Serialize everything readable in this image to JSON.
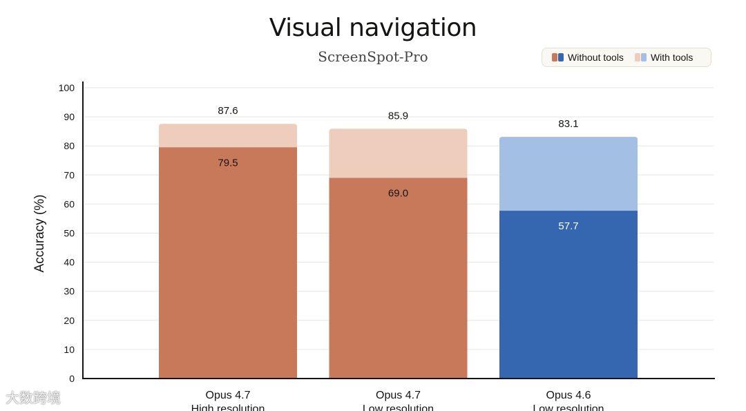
{
  "chart_data": {
    "type": "bar",
    "title": "Visual navigation",
    "subtitle": "ScreenSpot-Pro",
    "ylabel": "Accuracy (%)",
    "ylim": [
      0,
      100
    ],
    "yticks": [
      0,
      10,
      20,
      30,
      40,
      50,
      60,
      70,
      80,
      90,
      100
    ],
    "grid": true,
    "legend_position": "top-right",
    "categories": [
      [
        "Opus 4.7",
        "High resolution"
      ],
      [
        "Opus 4.7",
        "Low resolution"
      ],
      [
        "Opus 4.6",
        "Low resolution"
      ]
    ],
    "series": [
      {
        "name": "Without tools",
        "values": [
          79.5,
          69.0,
          57.7
        ],
        "labels": [
          "79.5",
          "69.0",
          "57.7"
        ]
      },
      {
        "name": "With tools",
        "values": [
          87.6,
          85.9,
          83.1
        ],
        "labels": [
          "87.6",
          "85.9",
          "83.1"
        ]
      }
    ],
    "colors": {
      "without_tools": [
        "#c8795a",
        "#c8795a",
        "#3567b0"
      ],
      "with_tools": [
        "#efcdbd",
        "#efcdbd",
        "#a3bfe4"
      ],
      "legend_without": [
        "#c8795a",
        "#3567b0"
      ],
      "legend_with": [
        "#efcdbd",
        "#a3bfe4"
      ],
      "label_on_light": "#141413",
      "label_on_blue": "#ffffff"
    }
  },
  "watermark": "大数跨境"
}
